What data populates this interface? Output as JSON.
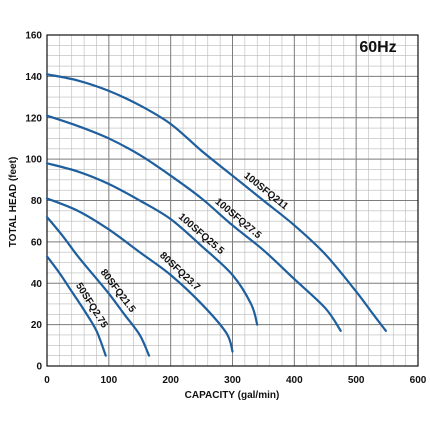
{
  "chart_data": {
    "type": "line",
    "title": "",
    "annotation": "60Hz",
    "xlabel": "CAPACITY (gal/min)",
    "ylabel": "TOTAL HEAD (feet)",
    "xlim": [
      0,
      600
    ],
    "ylim": [
      0,
      160
    ],
    "x_ticks": [
      0,
      100,
      200,
      300,
      400,
      500,
      600
    ],
    "y_ticks": [
      0,
      20,
      40,
      60,
      80,
      100,
      120,
      140,
      160
    ],
    "x_tick_labels": [
      "0",
      "100",
      "200",
      "300",
      "400",
      "500",
      "600"
    ],
    "y_tick_labels": [
      "0",
      "20",
      "40",
      "60",
      "80",
      "100",
      "120",
      "140",
      "160"
    ],
    "grid": true,
    "line_color": "#1f5f9e",
    "series": [
      {
        "name": "50SFQ2.75",
        "points": [
          [
            0,
            53
          ],
          [
            20,
            45
          ],
          [
            40,
            36
          ],
          [
            60,
            27
          ],
          [
            80,
            17
          ],
          [
            95,
            5
          ]
        ]
      },
      {
        "name": "80SFQ21.5",
        "points": [
          [
            0,
            72
          ],
          [
            25,
            63
          ],
          [
            50,
            53
          ],
          [
            75,
            44
          ],
          [
            100,
            35
          ],
          [
            125,
            25
          ],
          [
            150,
            15
          ],
          [
            165,
            5
          ]
        ]
      },
      {
        "name": "80SFQ23.7",
        "points": [
          [
            0,
            81
          ],
          [
            50,
            75
          ],
          [
            100,
            66
          ],
          [
            150,
            55
          ],
          [
            200,
            44
          ],
          [
            250,
            30
          ],
          [
            290,
            16
          ],
          [
            300,
            7
          ]
        ]
      },
      {
        "name": "100SFQ25.5",
        "points": [
          [
            0,
            98
          ],
          [
            50,
            94
          ],
          [
            100,
            88
          ],
          [
            150,
            80
          ],
          [
            200,
            71
          ],
          [
            250,
            58
          ],
          [
            300,
            44
          ],
          [
            330,
            30
          ],
          [
            340,
            20
          ]
        ]
      },
      {
        "name": "100SFQ27.5",
        "points": [
          [
            0,
            121
          ],
          [
            50,
            116
          ],
          [
            100,
            110
          ],
          [
            150,
            102
          ],
          [
            200,
            92
          ],
          [
            250,
            81
          ],
          [
            300,
            68
          ],
          [
            350,
            56
          ],
          [
            400,
            42
          ],
          [
            450,
            28
          ],
          [
            475,
            17
          ]
        ]
      },
      {
        "name": "100SFQ211",
        "points": [
          [
            0,
            141
          ],
          [
            50,
            138
          ],
          [
            100,
            133
          ],
          [
            150,
            126
          ],
          [
            200,
            117
          ],
          [
            250,
            104
          ],
          [
            300,
            92
          ],
          [
            350,
            80
          ],
          [
            400,
            68
          ],
          [
            450,
            54
          ],
          [
            500,
            36
          ],
          [
            525,
            26
          ],
          [
            548,
            17
          ]
        ]
      }
    ]
  }
}
